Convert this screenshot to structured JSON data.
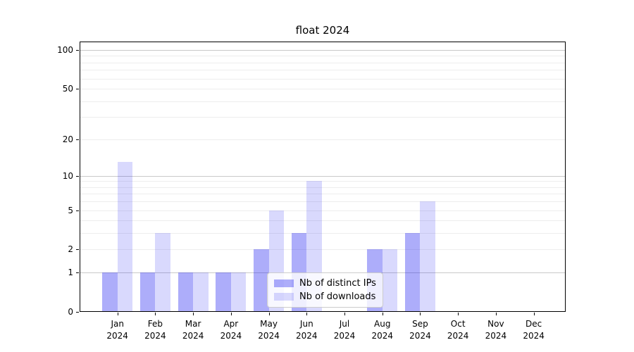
{
  "chart_data": {
    "type": "bar",
    "title": "float 2024",
    "categories": [
      "Jan 2024",
      "Feb 2024",
      "Mar 2024",
      "Apr 2024",
      "May 2024",
      "Jun 2024",
      "Jul 2024",
      "Aug 2024",
      "Sep 2024",
      "Oct 2024",
      "Nov 2024",
      "Dec 2024"
    ],
    "series": [
      {
        "name": "Nb of distinct IPs",
        "color": "#1414F059",
        "values": [
          1,
          1,
          1,
          1,
          2,
          3,
          0,
          2,
          3,
          0,
          0,
          0
        ]
      },
      {
        "name": "Nb of downloads",
        "color": "#1414F029",
        "values": [
          13,
          3,
          1,
          1,
          5,
          9,
          0,
          2,
          6,
          0,
          0,
          0
        ]
      }
    ],
    "xlabel": "",
    "ylabel": "",
    "yscale": "log1p",
    "ylim": [
      0,
      116
    ],
    "yticks": [
      0,
      1,
      2,
      5,
      10,
      20,
      50,
      100
    ],
    "grid": {
      "on": true,
      "major_lines": [
        1,
        10,
        100
      ],
      "minor_lines": [
        2,
        3,
        4,
        5,
        6,
        7,
        8,
        9,
        20,
        30,
        40,
        50,
        60,
        70,
        80,
        90
      ]
    },
    "legend": {
      "position": "lower center inside plot"
    }
  },
  "colors": {
    "grid_major": "#c9c9c9",
    "grid_minor": "#ededed",
    "axis": "#000000",
    "legend_border": "#cccccc",
    "legend_bg": "#ffffff"
  }
}
